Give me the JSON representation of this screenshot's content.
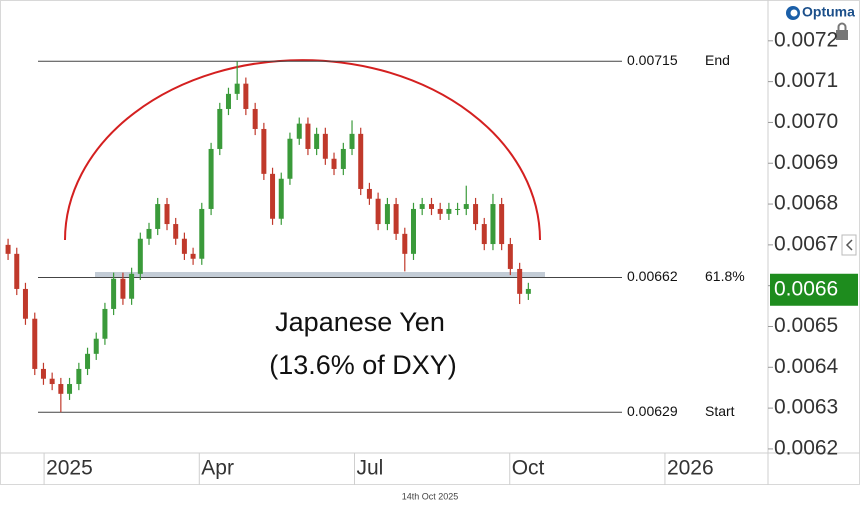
{
  "chart_data": {
    "type": "candlestick",
    "logo": "Optuma",
    "date_label": "14th Oct 2025",
    "annotation_lines": [
      "Japanese Yen",
      "(13.6% of DXY)"
    ],
    "xlim": [
      2024.929,
      2026.166
    ],
    "xticks": [
      2025,
      {
        "value": 2025.25,
        "label": "Apr"
      },
      {
        "value": 2025.5,
        "label": "Jul"
      },
      {
        "value": 2025.75,
        "label": "Oct"
      },
      2026
    ],
    "ylim": [
      0.00619,
      0.0073
    ],
    "yticks": [
      0.0062,
      0.0063,
      0.0064,
      0.0065,
      0.0066,
      0.0067,
      0.0068,
      0.0069,
      {
        "value": 0.007,
        "label": "0.0070"
      },
      0.0071,
      0.0072
    ],
    "up_color": "#3a9a3a",
    "down_color": "#c0392b",
    "last_price": {
      "value": 0.00659,
      "label": "0.0066",
      "color": "#1e8c1e"
    },
    "levels": [
      {
        "value": 0.00715,
        "name": "End"
      },
      {
        "value": 0.00662,
        "name": "61.8%"
      },
      {
        "value": 0.00629,
        "name": "Start"
      }
    ],
    "x": [
      2024.942,
      2024.956,
      2024.97,
      2024.985,
      2024.999,
      2025.013,
      2025.027,
      2025.041,
      2025.056,
      2025.07,
      2025.084,
      2025.098,
      2025.112,
      2025.127,
      2025.141,
      2025.155,
      2025.169,
      2025.183,
      2025.198,
      2025.212,
      2025.226,
      2025.24,
      2025.254,
      2025.269,
      2025.283,
      2025.297,
      2025.311,
      2025.325,
      2025.34,
      2025.354,
      2025.368,
      2025.382,
      2025.396,
      2025.411,
      2025.425,
      2025.439,
      2025.453,
      2025.467,
      2025.482,
      2025.496,
      2025.51,
      2025.524,
      2025.538,
      2025.553,
      2025.567,
      2025.581,
      2025.595,
      2025.609,
      2025.624,
      2025.638,
      2025.652,
      2025.666,
      2025.68,
      2025.695,
      2025.709,
      2025.723,
      2025.737,
      2025.751,
      2025.766,
      2025.78
    ],
    "open": [
      0.0067,
      0.006678,
      0.006592,
      0.006519,
      0.006396,
      0.006372,
      0.006359,
      0.006335,
      0.006359,
      0.006396,
      0.006433,
      0.00647,
      0.006543,
      0.006617,
      0.006568,
      0.006629,
      0.006715,
      0.006739,
      0.0068,
      0.006751,
      0.006715,
      0.006678,
      0.006666,
      0.006788,
      0.006935,
      0.007033,
      0.00707,
      0.007095,
      0.007033,
      0.006984,
      0.006874,
      0.006764,
      0.006862,
      0.00696,
      0.006997,
      0.006935,
      0.006972,
      0.006911,
      0.006886,
      0.006935,
      0.006972,
      0.006837,
      0.006813,
      0.006751,
      0.0068,
      0.006727,
      0.006678,
      0.006788,
      0.0068,
      0.006788,
      0.006776,
      0.006788,
      0.006788,
      0.0068,
      0.006751,
      0.006702,
      0.0068,
      0.006702,
      0.006641,
      0.00658
    ],
    "high": [
      0.006715,
      0.006693,
      0.006607,
      0.006534,
      0.006411,
      0.006387,
      0.006374,
      0.006374,
      0.006411,
      0.006448,
      0.006485,
      0.006558,
      0.006632,
      0.006632,
      0.006644,
      0.00673,
      0.006754,
      0.006815,
      0.006815,
      0.006766,
      0.00673,
      0.006693,
      0.006803,
      0.00695,
      0.007048,
      0.007085,
      0.00715,
      0.00711,
      0.007048,
      0.006999,
      0.006889,
      0.006877,
      0.006975,
      0.007012,
      0.007012,
      0.006987,
      0.006987,
      0.006926,
      0.00695,
      0.007005,
      0.006987,
      0.006852,
      0.006828,
      0.006815,
      0.006815,
      0.006742,
      0.006803,
      0.006815,
      0.006815,
      0.006803,
      0.006803,
      0.006803,
      0.006845,
      0.006815,
      0.006766,
      0.006825,
      0.006815,
      0.006717,
      0.006656,
      0.006607
    ],
    "low": [
      0.006663,
      0.006577,
      0.006504,
      0.006381,
      0.006357,
      0.006344,
      0.00629,
      0.00632,
      0.006344,
      0.006381,
      0.006418,
      0.006455,
      0.006528,
      0.006553,
      0.006553,
      0.006614,
      0.0067,
      0.006724,
      0.006736,
      0.0067,
      0.006663,
      0.006651,
      0.006651,
      0.006773,
      0.00692,
      0.007018,
      0.007055,
      0.007018,
      0.006969,
      0.006859,
      0.006749,
      0.006749,
      0.006847,
      0.006945,
      0.00692,
      0.00692,
      0.006896,
      0.006871,
      0.006871,
      0.00692,
      0.006822,
      0.006798,
      0.006736,
      0.006736,
      0.006712,
      0.006635,
      0.006663,
      0.006773,
      0.006773,
      0.006761,
      0.006761,
      0.006773,
      0.006773,
      0.006736,
      0.006687,
      0.006687,
      0.006687,
      0.006626,
      0.006555,
      0.006565
    ],
    "close": [
      0.006678,
      0.006592,
      0.006519,
      0.006396,
      0.006372,
      0.006359,
      0.006335,
      0.006359,
      0.006396,
      0.006433,
      0.00647,
      0.006543,
      0.006617,
      0.006568,
      0.006629,
      0.006715,
      0.006739,
      0.0068,
      0.006751,
      0.006715,
      0.006678,
      0.006666,
      0.006788,
      0.006935,
      0.007033,
      0.00707,
      0.007095,
      0.007033,
      0.006984,
      0.006874,
      0.006764,
      0.006862,
      0.00696,
      0.006997,
      0.006935,
      0.006972,
      0.006911,
      0.006886,
      0.006935,
      0.006972,
      0.006837,
      0.006813,
      0.006751,
      0.0068,
      0.006727,
      0.006678,
      0.006788,
      0.0068,
      0.006788,
      0.006776,
      0.006788,
      0.006788,
      0.0068,
      0.006751,
      0.006702,
      0.0068,
      0.006702,
      0.006641,
      0.00658,
      0.006592
    ]
  }
}
